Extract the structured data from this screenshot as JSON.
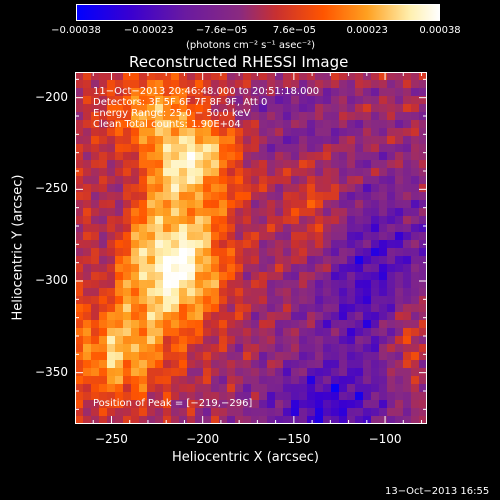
{
  "chart_data": {
    "type": "heatmap",
    "title": "Reconstructed RHESSI Image",
    "xlabel": "Heliocentric X (arcsec)",
    "ylabel": "Heliocentric Y (arcsec)",
    "xlim": [
      -270,
      -77
    ],
    "ylim": [
      -378,
      -186
    ],
    "xticks": [
      -250,
      -200,
      -150,
      -100
    ],
    "xtick_labels": [
      "−250",
      "−200",
      "−150",
      "−100"
    ],
    "yticks": [
      -200,
      -250,
      -300,
      -350
    ],
    "ytick_labels": [
      "−200",
      "−250",
      "−300",
      "−350"
    ],
    "colorbar": {
      "ticks": [
        "−0.00038",
        "−0.00023",
        "−7.6e−05",
        "7.6e−05",
        "0.00023",
        "0.00038"
      ],
      "range": [
        -0.00038,
        0.00038
      ],
      "unit_label": "(photons cm⁻² s⁻¹ asec⁻²)",
      "colors": [
        "#0000ff",
        "#3a00d0",
        "#6a1aa0",
        "#8a2a80",
        "#c83030",
        "#ff5500",
        "#ffa020",
        "#fff0b0",
        "#ffffff"
      ]
    },
    "info_lines": [
      "11−Oct−2013 20:46:48.000 to 20:51:18.000",
      "Detectors: 3F 5F 6F 7F 8F 9F, Att 0",
      "Energy Range: 25.0 − 50.0 keV",
      "Clean    Total counts: 1.90E+04"
    ],
    "peak_label": "Position of Peak = [−219,−296]",
    "peak_position": [
      -219,
      -296
    ],
    "grid": false
  },
  "footer": {
    "timestamp": "13−Oct−2013 16:55"
  }
}
